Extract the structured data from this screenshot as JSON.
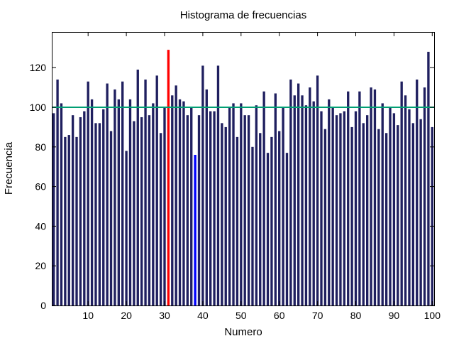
{
  "chart_data": {
    "type": "bar",
    "title": "Histograma de frecuencias",
    "xlabel": "Numero",
    "ylabel": "Frecuencia",
    "xlim": [
      0.5,
      100.5
    ],
    "ylim": [
      0,
      138
    ],
    "x_ticks": [
      10,
      20,
      30,
      40,
      50,
      60,
      70,
      80,
      90,
      100
    ],
    "y_ticks": [
      0,
      20,
      40,
      60,
      80,
      100,
      120
    ],
    "grid": false,
    "colors": {
      "bars": "#1f1f5f",
      "max": "#ff0000",
      "min": "#0000ff",
      "mean_line": "#009e73"
    },
    "mean_line": 100,
    "max_category": 31,
    "min_category": 38,
    "categories": [
      1,
      2,
      3,
      4,
      5,
      6,
      7,
      8,
      9,
      10,
      11,
      12,
      13,
      14,
      15,
      16,
      17,
      18,
      19,
      20,
      21,
      22,
      23,
      24,
      25,
      26,
      27,
      28,
      29,
      30,
      31,
      32,
      33,
      34,
      35,
      36,
      37,
      38,
      39,
      40,
      41,
      42,
      43,
      44,
      45,
      46,
      47,
      48,
      49,
      50,
      51,
      52,
      53,
      54,
      55,
      56,
      57,
      58,
      59,
      60,
      61,
      62,
      63,
      64,
      65,
      66,
      67,
      68,
      69,
      70,
      71,
      72,
      73,
      74,
      75,
      76,
      77,
      78,
      79,
      80,
      81,
      82,
      83,
      84,
      85,
      86,
      87,
      88,
      89,
      90,
      91,
      92,
      93,
      94,
      95,
      96,
      97,
      98,
      99,
      100
    ],
    "values": [
      97,
      114,
      102,
      85,
      86,
      96,
      85,
      95,
      98,
      113,
      104,
      92,
      92,
      99,
      112,
      88,
      109,
      104,
      113,
      78,
      104,
      93,
      119,
      95,
      114,
      96,
      102,
      116,
      87,
      100,
      129,
      106,
      111,
      104,
      103,
      96,
      100,
      76,
      96,
      121,
      109,
      98,
      98,
      121,
      92,
      90,
      100,
      102,
      85,
      102,
      96,
      96,
      80,
      101,
      87,
      108,
      77,
      85,
      107,
      88,
      100,
      77,
      114,
      106,
      112,
      106,
      101,
      110,
      103,
      116,
      98,
      89,
      104,
      100,
      96,
      97,
      98,
      108,
      90,
      98,
      108,
      92,
      96,
      110,
      109,
      89,
      102,
      87,
      100,
      97,
      91,
      113,
      106,
      99,
      92,
      114,
      94,
      110,
      128,
      90
    ]
  }
}
